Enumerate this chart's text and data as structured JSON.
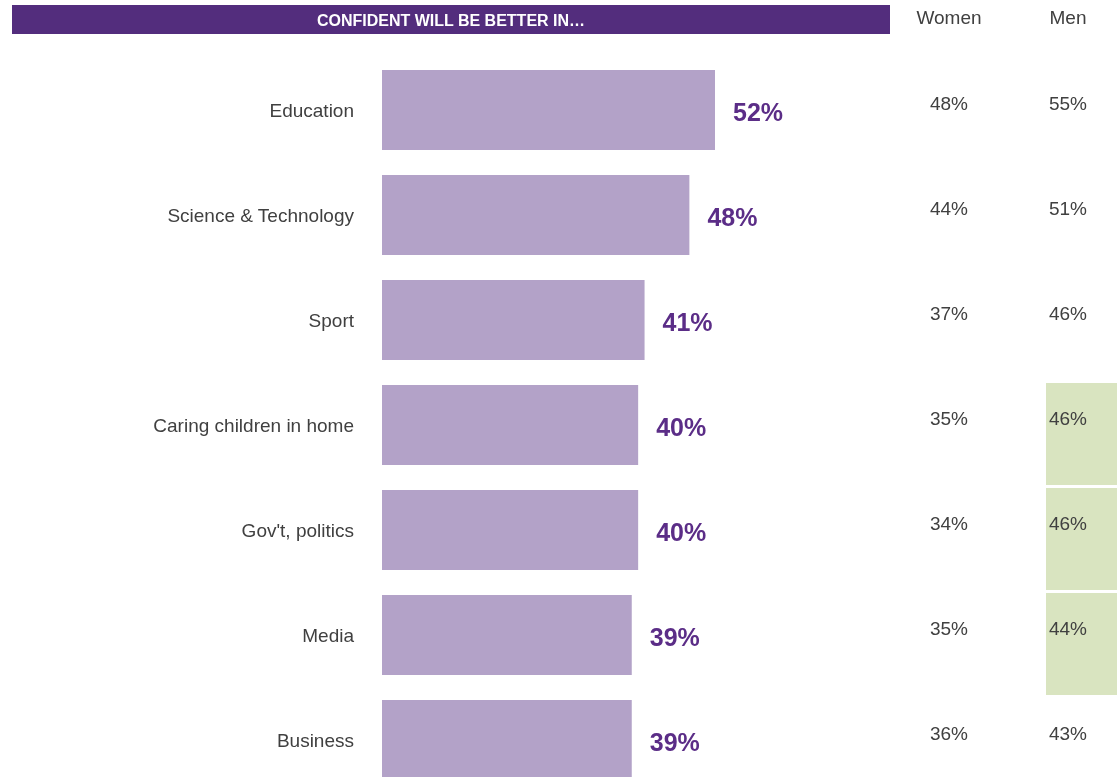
{
  "chart_data": [
    {
      "type": "bar",
      "orientation": "horizontal",
      "title": "CONFIDENT WILL BE BETTER IN…",
      "categories": [
        "Education",
        "Science & Technology",
        "Sport",
        "Caring children in home",
        "Gov't, politics",
        "Media",
        "Business"
      ],
      "series": [
        {
          "color": "#b3a2c8",
          "values": [
            52,
            48,
            41,
            40,
            40,
            39,
            39
          ],
          "value_labels": [
            "52%",
            "48%",
            "41%",
            "40%",
            "40%",
            "39%",
            "39%"
          ]
        }
      ]
    },
    {
      "type": "heatmap",
      "categories": [
        "Women",
        "Men"
      ],
      "y_categories": [
        null,
        null,
        null,
        null,
        null,
        null,
        null
      ],
      "cells": [
        [
          48,
          55
        ],
        [
          44,
          51
        ],
        [
          37,
          46
        ],
        [
          35,
          46
        ],
        [
          34,
          46
        ],
        [
          35,
          44
        ],
        [
          36,
          43
        ]
      ],
      "cell_labels": [
        [
          "48%",
          "55%"
        ],
        [
          "44%",
          "51%"
        ],
        [
          "37%",
          "46%"
        ],
        [
          "35%",
          "46%"
        ],
        [
          "34%",
          "46%"
        ],
        [
          "35%",
          "44%"
        ],
        [
          "36%",
          "43%"
        ]
      ],
      "colors": [
        [
          "#ffffff",
          "#ffffff"
        ],
        [
          "#ffffff",
          "#ffffff"
        ],
        [
          "#ffffff",
          "#ffffff"
        ],
        [
          "#ffffff",
          "#d9e4c0"
        ],
        [
          "#ffffff",
          "#d9e4c0"
        ],
        [
          "#ffffff",
          "#d9e4c0"
        ],
        [
          "#ffffff",
          "#ffffff"
        ]
      ]
    }
  ]
}
